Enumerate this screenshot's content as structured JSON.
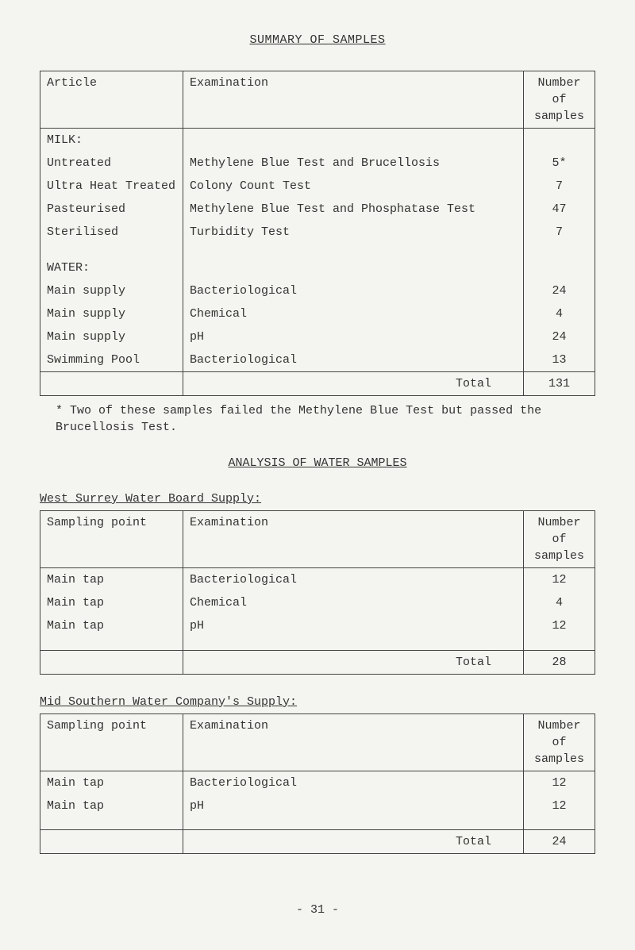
{
  "title": "SUMMARY OF SAMPLES",
  "table1": {
    "headers": {
      "col1": "Article",
      "col2": "Examination",
      "col3": "Number of samples"
    },
    "group1_label": "MILK:",
    "group1_rows": [
      {
        "art": "Untreated",
        "exam": "Methylene Blue Test and Brucellosis",
        "num": "5*"
      },
      {
        "art": "Ultra Heat Treated",
        "exam": "Colony Count Test",
        "num": "7"
      },
      {
        "art": "Pasteurised",
        "exam": "Methylene Blue Test and Phosphatase Test",
        "num": "47"
      },
      {
        "art": "Sterilised",
        "exam": "Turbidity Test",
        "num": "7"
      }
    ],
    "group2_label": "WATER:",
    "group2_rows": [
      {
        "art": "Main supply",
        "exam": "Bacteriological",
        "num": "24"
      },
      {
        "art": "Main supply",
        "exam": "Chemical",
        "num": "4"
      },
      {
        "art": "Main supply",
        "exam": "pH",
        "num": "24"
      },
      {
        "art": "Swimming Pool",
        "exam": "Bacteriological",
        "num": "13"
      }
    ],
    "total_label": "Total",
    "total_value": "131"
  },
  "footnote": "* Two of these samples failed the Methylene Blue Test but passed the Brucellosis Test.",
  "analysis_heading": "ANALYSIS OF WATER SAMPLES",
  "section2_label": "West Surrey Water Board Supply:",
  "table2": {
    "headers": {
      "col1": "Sampling point",
      "col2": "Examination",
      "col3": "Number of samples"
    },
    "rows": [
      {
        "pt": "Main tap",
        "exam": "Bacteriological",
        "num": "12"
      },
      {
        "pt": "Main tap",
        "exam": "Chemical",
        "num": "4"
      },
      {
        "pt": "Main tap",
        "exam": "pH",
        "num": "12"
      }
    ],
    "total_label": "Total",
    "total_value": "28"
  },
  "section3_label": "Mid Southern Water Company's Supply:",
  "table3": {
    "headers": {
      "col1": "Sampling point",
      "col2": "Examination",
      "col3": "Number of samples"
    },
    "rows": [
      {
        "pt": "Main tap",
        "exam": "Bacteriological",
        "num": "12"
      },
      {
        "pt": "Main tap",
        "exam": "pH",
        "num": "12"
      }
    ],
    "total_label": "Total",
    "total_value": "24"
  },
  "page_number": "- 31 -"
}
